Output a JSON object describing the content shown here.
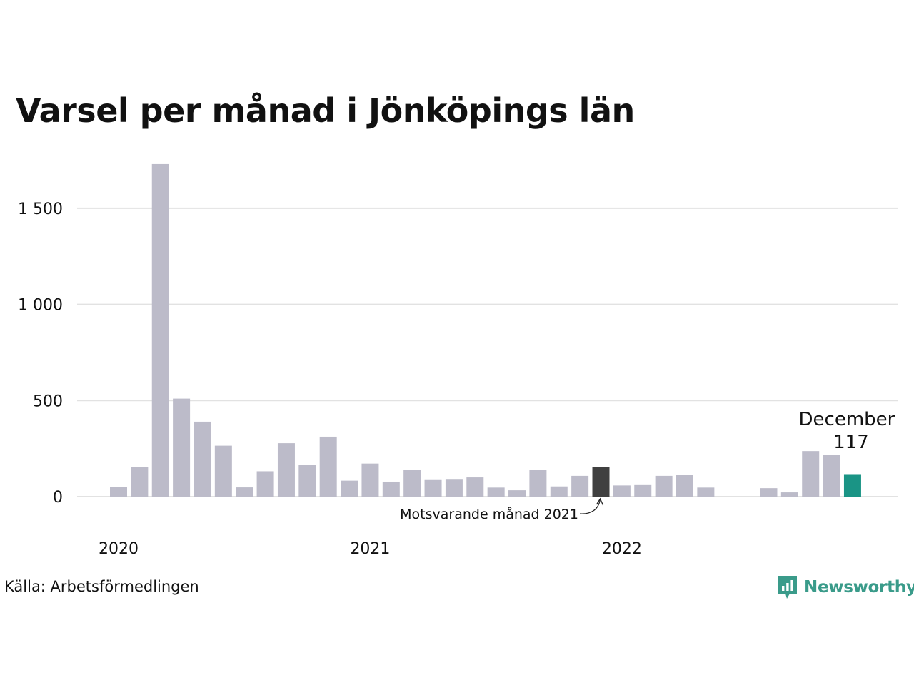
{
  "title": "Varsel per månad i Jönköpings län",
  "source": "Källa: Arbetsförmedlingen",
  "brand": {
    "name": "Newsworthy",
    "icon": "newsworthy-logo-icon",
    "color": "#3a9b8a"
  },
  "chart_data": {
    "type": "bar",
    "title": "Varsel per månad i Jönköpings län",
    "xlabel": "",
    "ylabel": "",
    "ylim": [
      0,
      1750
    ],
    "grid": true,
    "y_ticks": [
      {
        "value": 0,
        "label": "0"
      },
      {
        "value": 500,
        "label": "500"
      },
      {
        "value": 1000,
        "label": "1 000"
      },
      {
        "value": 1500,
        "label": "1 500"
      }
    ],
    "x_ticks": [
      {
        "index": 0,
        "label": "2020"
      },
      {
        "index": 12,
        "label": "2021"
      },
      {
        "index": 24,
        "label": "2022"
      }
    ],
    "categories": [
      "2020-01",
      "2020-02",
      "2020-03",
      "2020-04",
      "2020-05",
      "2020-06",
      "2020-07",
      "2020-08",
      "2020-09",
      "2020-10",
      "2020-11",
      "2020-12",
      "2021-01",
      "2021-02",
      "2021-03",
      "2021-04",
      "2021-05",
      "2021-06",
      "2021-07",
      "2021-08",
      "2021-09",
      "2021-10",
      "2021-11",
      "2021-12",
      "2022-01",
      "2022-02",
      "2022-03",
      "2022-04",
      "2022-05",
      "2022-06",
      "2022-07",
      "2022-08",
      "2022-09",
      "2022-10",
      "2022-11",
      "2022-12"
    ],
    "values": [
      50,
      155,
      1730,
      510,
      390,
      265,
      48,
      132,
      278,
      165,
      312,
      83,
      172,
      78,
      140,
      90,
      92,
      100,
      47,
      33,
      138,
      53,
      108,
      155,
      58,
      60,
      108,
      115,
      47,
      0,
      0,
      44,
      22,
      237,
      218,
      117
    ],
    "colors": {
      "default": "#bcbbc9",
      "comparison": "#404040",
      "highlight": "#1a9485",
      "grid": "#e2e2e2"
    },
    "comparison_index": 23,
    "highlight_index": 35,
    "annotations": {
      "comparison_label": "Motsvarande månad 2021",
      "highlight_month": "December",
      "highlight_value": "117"
    }
  }
}
